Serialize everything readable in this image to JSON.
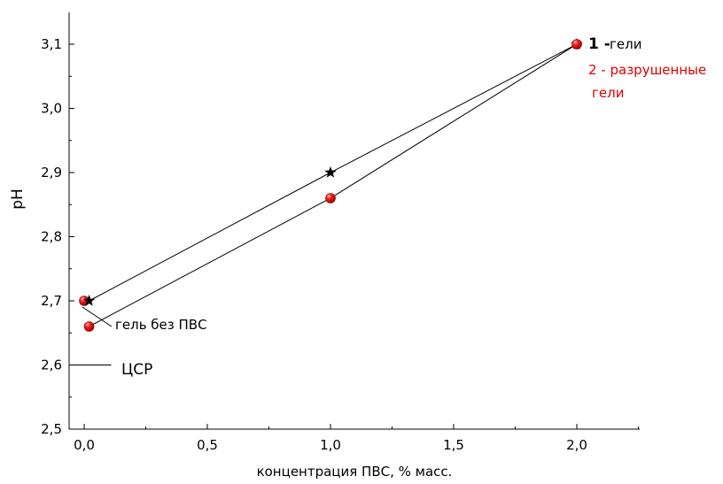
{
  "chart_data": {
    "type": "scatter",
    "title": "",
    "xlabel": "концентрация ПВС, % масс.",
    "ylabel": "pH",
    "xlim": [
      -0.06,
      2.25
    ],
    "ylim": [
      2.5,
      3.15
    ],
    "xticks": [
      0.0,
      0.5,
      1.0,
      1.5,
      2.0
    ],
    "xtick_labels": [
      "0,0",
      "0,5",
      "1,0",
      "1,5",
      "2,0"
    ],
    "yticks": [
      2.5,
      2.6,
      2.7,
      2.8,
      2.9,
      3.0,
      3.1
    ],
    "ytick_labels": [
      "2,5",
      "2,6",
      "2,7",
      "2,8",
      "2,9",
      "3,0",
      "3,1"
    ],
    "grid": false,
    "series": [
      {
        "name": "1 - гели",
        "marker": "star",
        "color": "#000000",
        "points": [
          {
            "x": 0.02,
            "y": 2.7
          },
          {
            "x": 1.0,
            "y": 2.9
          },
          {
            "x": 2.0,
            "y": 3.1
          }
        ]
      },
      {
        "name": "2 - разрушенные гели",
        "marker": "sphere",
        "color": "#e00000",
        "points": [
          {
            "x": 0.02,
            "y": 2.66
          },
          {
            "x": 1.0,
            "y": 2.86
          },
          {
            "x": 2.0,
            "y": 3.1
          }
        ]
      }
    ],
    "single_point": {
      "x": 0.0,
      "y": 2.7,
      "marker": "sphere",
      "color": "#e00000"
    },
    "reference_line": {
      "label": "ЦСР",
      "y": 2.6,
      "x_start": -0.06,
      "x_end": 0.11
    },
    "annotations": {
      "gel_no_pva": "гель без ПВС",
      "legend_1_num": "1 -",
      "legend_1_text": "гели",
      "legend_2_line1": "2 - разрушенные",
      "legend_2_line2": "гели"
    }
  }
}
